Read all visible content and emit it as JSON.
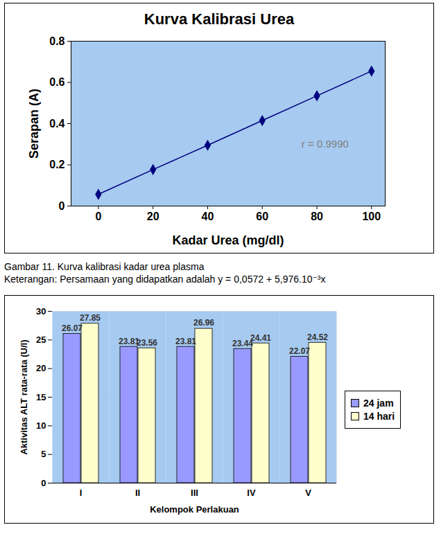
{
  "chart_data": [
    {
      "type": "line",
      "title": "Kurva Kalibrasi Urea",
      "x_label": "Kadar Urea (mg/dl)",
      "y_label": "Serapan (A)",
      "x": [
        0,
        20,
        40,
        60,
        80,
        100
      ],
      "values": [
        0.057,
        0.177,
        0.295,
        0.415,
        0.535,
        0.655
      ],
      "color": "#000080",
      "marker": "diamond",
      "xlim": [
        -10,
        105
      ],
      "xticks": [
        0,
        20,
        40,
        60,
        80,
        100
      ],
      "ylim": [
        0,
        0.8
      ],
      "yticks": [
        0,
        0.2,
        0.4,
        0.6,
        0.8
      ],
      "grid": true,
      "annotations": [
        {
          "text": "r = 0.9990",
          "x": 83,
          "y": 0.3
        }
      ],
      "caption": [
        "Gambar  11. Kurva kalibrasi kadar urea plasma",
        "Keterangan: Persamaan yang didapatkan adalah y = 0,0572 + 5,976.10⁻³x"
      ]
    },
    {
      "type": "bar",
      "x_label": "Kelompok Perlakuan",
      "y_label": "Aktivitas ALT rata-rata (U/l)",
      "categories": [
        "I",
        "II",
        "III",
        "IV",
        "V"
      ],
      "series": [
        {
          "name": "24 jam",
          "color": "#9999ff",
          "values": [
            26.07,
            23.81,
            23.81,
            23.44,
            22.07
          ]
        },
        {
          "name": "14 hari",
          "color": "#ffffcc",
          "values": [
            27.85,
            23.56,
            26.96,
            24.41,
            24.52
          ]
        }
      ],
      "ylim": [
        0,
        30
      ],
      "yticks": [
        0,
        5,
        10,
        15,
        20,
        25,
        30
      ],
      "grid": true,
      "legend": "right",
      "data_labels": true
    }
  ]
}
